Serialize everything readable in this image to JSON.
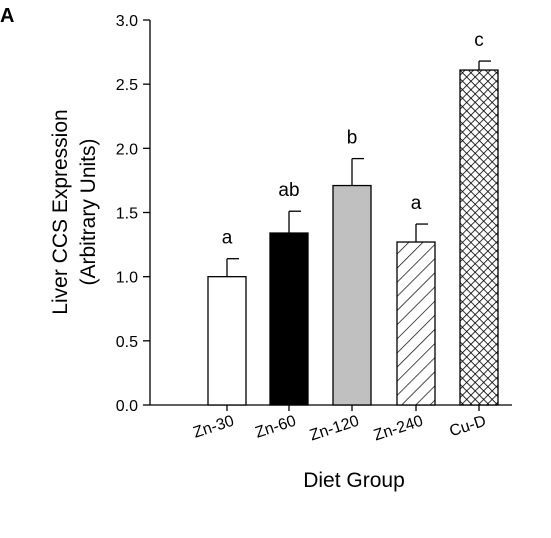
{
  "panel_label": "A",
  "chart_data": {
    "type": "bar",
    "categories": [
      "Zn-30",
      "Zn-60",
      "Zn-120",
      "Zn-240",
      "Cu-D"
    ],
    "values": [
      1.0,
      1.34,
      1.71,
      1.27,
      2.61
    ],
    "errors": [
      0.14,
      0.17,
      0.21,
      0.14,
      0.07
    ],
    "significance_letters": [
      "a",
      "ab",
      "b",
      "a",
      "c"
    ],
    "fills": [
      "white",
      "black",
      "grey",
      "diagonal-hatch",
      "crosshatch"
    ],
    "colors": {
      "black": "#000000",
      "grey": "#c0c0c0",
      "white": "#ffffff"
    },
    "xlabel": "Diet Group",
    "ylabel_line1": "Liver CCS Expression",
    "ylabel_line2": "(Arbitrary Units)",
    "ylim": [
      0.0,
      3.0
    ],
    "yticks": [
      "0.0",
      "0.5",
      "1.0",
      "1.5",
      "2.0",
      "2.5",
      "3.0"
    ],
    "grid": false
  }
}
